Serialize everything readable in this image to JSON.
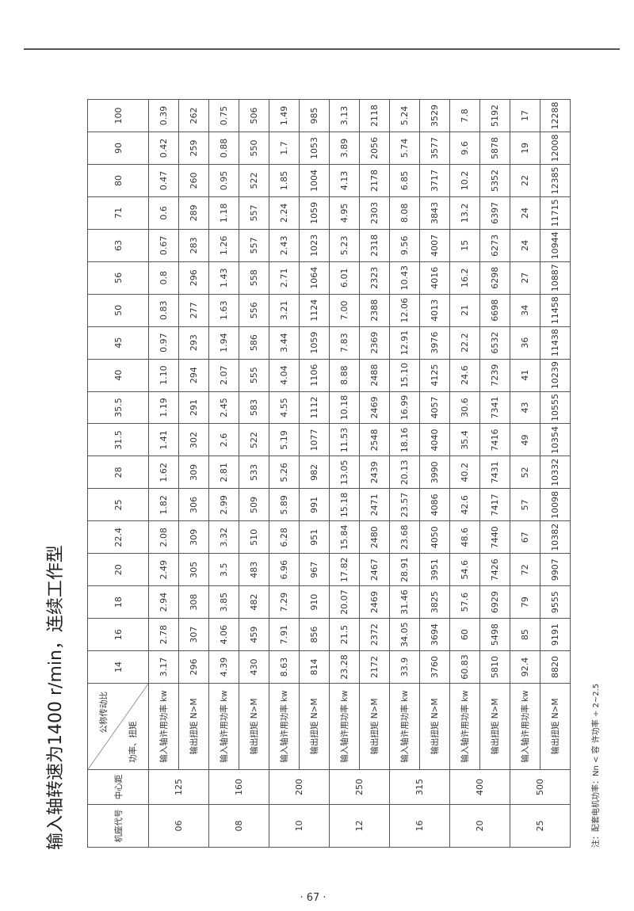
{
  "title": "输入轴转速为1400 r/min，连续工作型",
  "header": {
    "machine_code": "机座代号",
    "center_distance": "中心距",
    "ratio_label": "公称传动比",
    "power_torque_label": "功率、扭矩"
  },
  "labels": {
    "power": "输入轴许用功率 kw",
    "torque": "输出扭矩 N>M"
  },
  "ratios": [
    "14",
    "16",
    "18",
    "20",
    "22.4",
    "25",
    "28",
    "31.5",
    "35.5",
    "40",
    "45",
    "50",
    "56",
    "63",
    "71",
    "80",
    "90",
    "100"
  ],
  "rows": [
    {
      "code": "06",
      "center": "125",
      "power": [
        "3.17",
        "2.78",
        "2.94",
        "2.49",
        "2.08",
        "1.82",
        "1.62",
        "1.41",
        "1.19",
        "1.10",
        "0.97",
        "0.83",
        "0.8",
        "0.67",
        "0.6",
        "0.47",
        "0.42",
        "0.39"
      ],
      "torque": [
        "296",
        "307",
        "308",
        "305",
        "309",
        "306",
        "309",
        "302",
        "291",
        "294",
        "293",
        "277",
        "296",
        "283",
        "289",
        "260",
        "259",
        "262"
      ]
    },
    {
      "code": "08",
      "center": "160",
      "power": [
        "4.39",
        "4.06",
        "3.85",
        "3.5",
        "3.32",
        "2.99",
        "2.81",
        "2.6",
        "2.45",
        "2.07",
        "1.94",
        "1.63",
        "1.43",
        "1.26",
        "1.18",
        "0.95",
        "0.88",
        "0.75"
      ],
      "torque": [
        "430",
        "459",
        "482",
        "483",
        "510",
        "509",
        "533",
        "522",
        "583",
        "555",
        "586",
        "556",
        "558",
        "557",
        "557",
        "522",
        "550",
        "506"
      ]
    },
    {
      "code": "10",
      "center": "200",
      "power": [
        "8.63",
        "7.91",
        "7.29",
        "6.96",
        "6.28",
        "5.89",
        "5.26",
        "5.19",
        "4.55",
        "4.04",
        "3.44",
        "3.21",
        "2.71",
        "2.43",
        "2.24",
        "1.85",
        "1.7",
        "1.49"
      ],
      "torque": [
        "814",
        "856",
        "910",
        "967",
        "951",
        "991",
        "982",
        "1077",
        "1112",
        "1106",
        "1059",
        "1124",
        "1064",
        "1023",
        "1059",
        "1004",
        "1053",
        "985"
      ]
    },
    {
      "code": "12",
      "center": "250",
      "power": [
        "23.28",
        "21.5",
        "20.07",
        "17.82",
        "15.84",
        "15.18",
        "13.05",
        "11.53",
        "10.18",
        "8.88",
        "7.83",
        "7.00",
        "6.01",
        "5.23",
        "4.95",
        "4.13",
        "3.89",
        "3.13"
      ],
      "torque": [
        "2172",
        "2372",
        "2469",
        "2467",
        "2480",
        "2471",
        "2439",
        "2548",
        "2469",
        "2488",
        "2369",
        "2388",
        "2323",
        "2318",
        "2303",
        "2178",
        "2056",
        "2118"
      ]
    },
    {
      "code": "16",
      "center": "315",
      "power": [
        "33.9",
        "34.05",
        "31.46",
        "28.91",
        "23.68",
        "23.57",
        "20.13",
        "18.16",
        "16.99",
        "15.10",
        "12.91",
        "12.06",
        "10.43",
        "9.56",
        "8.08",
        "6.85",
        "5.74",
        "5.24"
      ],
      "torque": [
        "3760",
        "3694",
        "3825",
        "3951",
        "4050",
        "4086",
        "3990",
        "4040",
        "4057",
        "4125",
        "3976",
        "4013",
        "4016",
        "4007",
        "3843",
        "3717",
        "3577",
        "3529"
      ]
    },
    {
      "code": "20",
      "center": "400",
      "power": [
        "60.83",
        "60",
        "57.6",
        "54.6",
        "48.6",
        "42.6",
        "40.2",
        "35.4",
        "30.6",
        "24.6",
        "22.2",
        "21",
        "16.2",
        "15",
        "13.2",
        "10.2",
        "9.6",
        "7.8"
      ],
      "torque": [
        "5810",
        "5498",
        "6929",
        "7426",
        "7440",
        "7417",
        "7431",
        "7416",
        "7341",
        "7239",
        "6532",
        "6698",
        "6298",
        "6273",
        "6397",
        "5352",
        "5878",
        "5192"
      ]
    },
    {
      "code": "25",
      "center": "500",
      "power": [
        "92.4",
        "85",
        "79",
        "72",
        "67",
        "57",
        "52",
        "49",
        "43",
        "41",
        "36",
        "34",
        "27",
        "24",
        "24",
        "22",
        "19",
        "17"
      ],
      "torque": [
        "8820",
        "9191",
        "9555",
        "9907",
        "10382",
        "10098",
        "10332",
        "10354",
        "10555",
        "10239",
        "11438",
        "11458",
        "10887",
        "10944",
        "11715",
        "12385",
        "12008",
        "12288"
      ]
    }
  ],
  "note": "注：配套电机功率：Nn < 容 许功率 ÷ 2~2.5",
  "page_number": "· 67 ·"
}
